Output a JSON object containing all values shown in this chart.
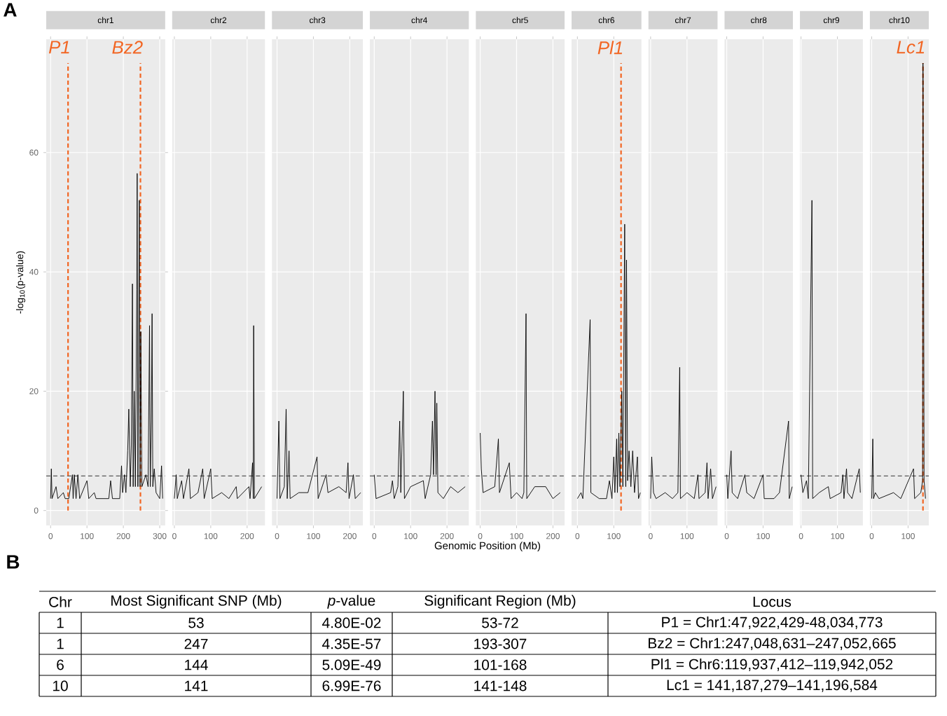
{
  "chart_data": [
    {
      "type": "line",
      "title": "chr1",
      "ylabel": "-log$_{10}$(p-value)",
      "annotations": [
        "A"
      ],
      "color": "#000000",
      "grid": true,
      "xlim": [
        -12,
        315
      ],
      "xticks": [
        0,
        100,
        200,
        300
      ],
      "ylim": [
        -2.5,
        79
      ],
      "yticks": [
        0,
        20,
        40,
        60
      ],
      "x": [
        0,
        2,
        4,
        15,
        20,
        35,
        40,
        50,
        60,
        62,
        65,
        70,
        75,
        80,
        100,
        105,
        120,
        125,
        160,
        165,
        170,
        190,
        195,
        198,
        203,
        207,
        212,
        215,
        219,
        222,
        225,
        227,
        230,
        233,
        237,
        238,
        240,
        244,
        246,
        248,
        251,
        262,
        268,
        272,
        274,
        277,
        279,
        281,
        285,
        290,
        300,
        305,
        308
      ],
      "values": [
        2,
        7,
        2,
        4,
        2,
        3,
        2,
        2,
        6,
        2,
        6,
        2,
        6,
        2,
        5,
        2,
        3,
        2,
        2,
        5,
        2,
        2,
        7.5,
        3,
        6,
        3,
        10,
        17,
        4,
        11,
        38,
        4,
        20,
        4,
        37,
        56.5,
        4,
        52,
        4,
        30,
        4,
        6,
        4,
        31,
        4,
        15,
        33,
        4,
        7,
        3,
        2,
        7.5,
        2
      ],
      "ref_lines": [
        {
          "axis": "y",
          "value": 5.8,
          "line_style": "dashed",
          "color": "#333333"
        },
        {
          "axis": "x",
          "value": 48,
          "label": "P1",
          "line_style": "dashed",
          "color": "#f26522"
        },
        {
          "axis": "x",
          "value": 247,
          "label": "Bz2",
          "line_style": "dashed",
          "color": "#f26522"
        }
      ]
    },
    {
      "type": "line",
      "title": "chr2",
      "tick_labels": "x",
      "color": "#000000",
      "grid": true,
      "xlim": [
        -6,
        249
      ],
      "xticks": [
        0,
        100,
        200
      ],
      "ylim": [
        -2.5,
        79
      ],
      "yticks": [
        0,
        20,
        40,
        60
      ],
      "x": [
        0,
        5,
        8,
        20,
        25,
        40,
        44,
        65,
        78,
        82,
        100,
        104,
        130,
        150,
        170,
        173,
        205,
        208,
        215,
        217,
        218,
        220,
        240
      ],
      "values": [
        2,
        6,
        2,
        5,
        2,
        7,
        2,
        3,
        7,
        2,
        7,
        2,
        3,
        2,
        4,
        2,
        4,
        2,
        8,
        2,
        31,
        2,
        4
      ],
      "ref_lines": [
        {
          "axis": "y",
          "value": 5.8,
          "line_style": "dashed",
          "color": "#333333"
        }
      ]
    },
    {
      "type": "line",
      "title": "chr3",
      "tick_labels": "x",
      "color": "#000000",
      "grid": true,
      "xlim": [
        -14,
        236
      ],
      "xticks": [
        0,
        100,
        200
      ],
      "ylim": [
        -2.5,
        79
      ],
      "yticks": [
        0,
        20,
        40,
        60
      ],
      "x": [
        0,
        5,
        8,
        20,
        25,
        28,
        33,
        36,
        60,
        85,
        110,
        113,
        135,
        140,
        170,
        190,
        195,
        198,
        210,
        215,
        230
      ],
      "values": [
        2,
        15,
        2,
        4,
        17,
        2,
        10,
        2,
        3,
        3,
        9,
        2,
        6,
        3,
        4,
        3,
        8,
        2,
        6,
        2,
        3
      ],
      "ref_lines": [
        {
          "axis": "y",
          "value": 5.8,
          "line_style": "dashed",
          "color": "#333333"
        }
      ]
    },
    {
      "type": "line",
      "title": "chr4",
      "tick_labels": "x",
      "color": "#000000",
      "grid": true,
      "xlim": [
        -12,
        260
      ],
      "xticks": [
        0,
        100,
        200
      ],
      "ylim": [
        -2.5,
        79
      ],
      "yticks": [
        0,
        20,
        40,
        60
      ],
      "x": [
        0,
        5,
        45,
        50,
        55,
        65,
        70,
        73,
        80,
        83,
        100,
        135,
        140,
        155,
        160,
        163,
        167,
        170,
        172,
        175,
        190,
        210,
        230,
        250
      ],
      "values": [
        6,
        2,
        3,
        5,
        2,
        4,
        15,
        3,
        20,
        2,
        4,
        5,
        2,
        6,
        15,
        6,
        20,
        6,
        18,
        3,
        2,
        4,
        3,
        4
      ],
      "ref_lines": [
        {
          "axis": "y",
          "value": 5.8,
          "line_style": "dashed",
          "color": "#333333"
        }
      ]
    },
    {
      "type": "line",
      "title": "chr5",
      "xlabel": "Genomic Position (Mb)",
      "tick_labels": "x",
      "color": "#000000",
      "grid": true,
      "xlim": [
        -12,
        232
      ],
      "xticks": [
        0,
        100,
        200
      ],
      "ylim": [
        -2.5,
        79
      ],
      "yticks": [
        0,
        20,
        40,
        60
      ],
      "x": [
        0,
        3,
        8,
        40,
        50,
        53,
        80,
        85,
        100,
        115,
        120,
        126,
        128,
        150,
        180,
        200,
        220
      ],
      "values": [
        13,
        7,
        3,
        4,
        12,
        3,
        8,
        2,
        3,
        2,
        3,
        33,
        2,
        4,
        4,
        2,
        3
      ],
      "ref_lines": [
        {
          "axis": "y",
          "value": 5.8,
          "line_style": "dashed",
          "color": "#333333"
        }
      ]
    },
    {
      "type": "line",
      "title": "chr6",
      "tick_labels": "x",
      "color": "#000000",
      "grid": true,
      "xlim": [
        -16,
        176
      ],
      "xticks": [
        0,
        100
      ],
      "ylim": [
        -2.5,
        79
      ],
      "yticks": [
        0,
        20,
        40,
        60
      ],
      "x": [
        0,
        10,
        15,
        35,
        37,
        60,
        80,
        88,
        95,
        100,
        103,
        108,
        110,
        114,
        117,
        122,
        125,
        130,
        133,
        135,
        138,
        142,
        147,
        152,
        157,
        165,
        168,
        173
      ],
      "values": [
        2,
        3,
        2,
        32,
        3,
        2,
        2,
        5,
        2,
        9,
        3,
        12,
        3,
        13,
        4,
        20,
        4,
        48,
        4,
        42,
        5,
        10,
        4,
        10,
        3,
        9,
        2,
        3
      ],
      "ref_lines": [
        {
          "axis": "y",
          "value": 5.8,
          "line_style": "dashed",
          "color": "#333333"
        },
        {
          "axis": "x",
          "value": 120,
          "label": "Pl1",
          "line_style": "dashed",
          "color": "#f26522"
        }
      ]
    },
    {
      "type": "line",
      "title": "chr7",
      "tick_labels": "x",
      "color": "#000000",
      "grid": true,
      "xlim": [
        -6,
        184
      ],
      "xticks": [
        0,
        100
      ],
      "ylim": [
        -2.5,
        79
      ],
      "yticks": [
        0,
        20,
        40,
        60
      ],
      "x": [
        0,
        3,
        8,
        15,
        40,
        60,
        75,
        80,
        82,
        100,
        120,
        130,
        133,
        150,
        155,
        158,
        165,
        170,
        180
      ],
      "values": [
        2,
        9,
        3,
        2,
        3,
        2,
        3,
        24,
        2,
        3,
        2,
        6,
        2,
        3,
        8,
        2,
        7,
        2,
        4
      ],
      "ref_lines": [
        {
          "axis": "y",
          "value": 5.8,
          "line_style": "dashed",
          "color": "#333333"
        }
      ]
    },
    {
      "type": "line",
      "title": "chr8",
      "tick_labels": "x",
      "color": "#000000",
      "grid": true,
      "xlim": [
        -6,
        182
      ],
      "xticks": [
        0,
        100
      ],
      "ylim": [
        -2.5,
        79
      ],
      "yticks": [
        0,
        20,
        40,
        60
      ],
      "x": [
        0,
        3,
        12,
        15,
        30,
        50,
        55,
        75,
        100,
        103,
        130,
        145,
        170,
        172,
        180
      ],
      "values": [
        6,
        2,
        10,
        3,
        2,
        6,
        3,
        2,
        6,
        2,
        2,
        3,
        15,
        2,
        4
      ],
      "ref_lines": [
        {
          "axis": "y",
          "value": 5.8,
          "line_style": "dashed",
          "color": "#333333"
        }
      ]
    },
    {
      "type": "line",
      "title": "chr9",
      "tick_labels": "x",
      "color": "#000000",
      "grid": true,
      "xlim": [
        -3,
        170
      ],
      "xticks": [
        0,
        100
      ],
      "ylim": [
        -2.5,
        79
      ],
      "yticks": [
        0,
        20,
        40,
        60
      ],
      "x": [
        0,
        5,
        15,
        20,
        30,
        32,
        50,
        75,
        80,
        110,
        115,
        118,
        125,
        128,
        140,
        160,
        163
      ],
      "values": [
        6,
        3,
        5,
        2,
        52,
        2,
        3,
        4,
        2,
        3,
        6,
        2,
        7,
        3,
        2,
        7,
        3
      ],
      "ref_lines": [
        {
          "axis": "y",
          "value": 5.8,
          "line_style": "dashed",
          "color": "#333333"
        }
      ]
    },
    {
      "type": "line",
      "title": "chr10",
      "tick_labels": "x",
      "color": "#000000",
      "grid": true,
      "xlim": [
        -5,
        157
      ],
      "xticks": [
        0,
        100
      ],
      "ylim": [
        -2.5,
        79
      ],
      "yticks": [
        0,
        20,
        40,
        60
      ],
      "x": [
        0,
        3,
        5,
        10,
        20,
        60,
        80,
        115,
        118,
        135,
        140,
        141,
        142,
        143,
        144,
        148
      ],
      "values": [
        2,
        12,
        2,
        3,
        2,
        3,
        2,
        7,
        2,
        3,
        5,
        75,
        54,
        37,
        5,
        2
      ],
      "ref_lines": [
        {
          "axis": "y",
          "value": 5.8,
          "line_style": "dashed",
          "color": "#333333"
        },
        {
          "axis": "x",
          "value": 141,
          "label": "Lc1",
          "line_style": "dashed",
          "color": "#f26522"
        }
      ]
    },
    {
      "type": "other",
      "title": "B",
      "annotations": [
        "Chr",
        "Most Significant SNP (Mb)",
        "*p*-value",
        "Significant Region (Mb)",
        "Locus",
        "1",
        "53",
        "4.80E-02",
        "53-72",
        "P1 = Chr1:47,922,429-48,034,773",
        "1",
        "247",
        "4.35E-57",
        "193-307",
        "Bz2 = Chr1:247,048,631–247,052,665",
        "6",
        "144",
        "5.09E-49",
        "101-168",
        "Pl1 = Chr6:119,937,412–119,942,052",
        "10",
        "141",
        "6.99E-76",
        "141-148",
        "Lc1 = 141,187,279–141,196,584"
      ]
    }
  ]
}
